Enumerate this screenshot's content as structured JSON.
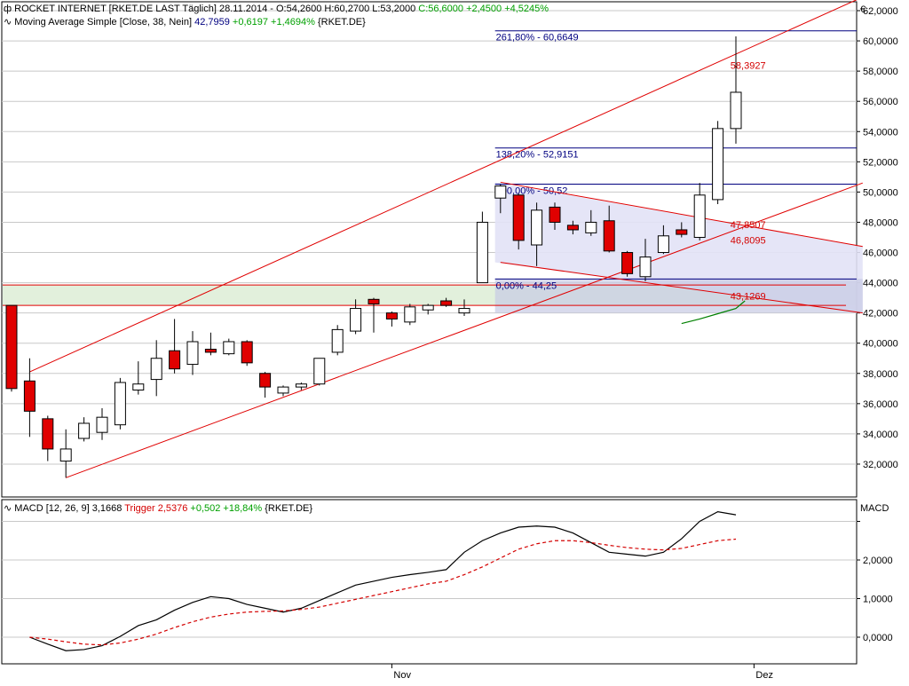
{
  "header": {
    "line1": {
      "icon": "candlestick-icon",
      "prefix": "ROCKET INTERNET [RKET.DE LAST Täglich] 28.11.2014 - ",
      "ohl": "O:54,2600 H:60,2700 L:53,2000",
      "close": "C:56,6000",
      "change": "+2,4500 +4,5245%"
    },
    "line2": {
      "icon": "line-icon",
      "label": "Moving Average Simple [Close, 38, Nein]",
      "value": "42,7959",
      "change": "+0,6197 +1,4694%",
      "symbol": "{RKET.DE}"
    },
    "macd_line": {
      "icon": "line-icon",
      "label": "MACD [12, 26, 9] 3,1668",
      "trigger": "Trigger 2,5376",
      "change": "+0,502 +18,84%",
      "symbol": "{RKET.DE}"
    }
  },
  "colors": {
    "up": "#ffffff",
    "down": "#e00000",
    "channel": "#e00000",
    "fib": "#000080",
    "ma": "#008000",
    "macd": "#000000",
    "trigger": "#d40000",
    "zone_green": "#e2f0dc",
    "zone_blue": "#e2e2f6",
    "grid": "#c8c8c8"
  },
  "chart_data": [
    {
      "type": "candlestick",
      "currency_label": "€",
      "ylim": [
        30500,
        63500
      ],
      "y_ticks": [
        32000,
        34000,
        36000,
        38000,
        40000,
        42000,
        44000,
        46000,
        48000,
        50000,
        52000,
        54000,
        56000,
        58000,
        60000,
        62000
      ],
      "tick_labels": [
        "32,0000",
        "34,0000",
        "36,0000",
        "38,0000",
        "40,0000",
        "42,0000",
        "44,0000",
        "46,0000",
        "48,0000",
        "50,0000",
        "52,0000",
        "54,0000",
        "56,0000",
        "58,0000",
        "60,0000",
        "62,0000"
      ],
      "x_labels": [
        {
          "index": 21,
          "label": "Nov"
        },
        {
          "index": 41,
          "label": "Dez"
        }
      ],
      "candles": [
        {
          "o": 42500,
          "h": 42500,
          "l": 36800,
          "c": 37000
        },
        {
          "o": 37500,
          "h": 39000,
          "l": 33800,
          "c": 35500
        },
        {
          "o": 35000,
          "h": 35200,
          "l": 32200,
          "c": 33000
        },
        {
          "o": 32200,
          "h": 34300,
          "l": 31100,
          "c": 33000
        },
        {
          "o": 33700,
          "h": 35100,
          "l": 33500,
          "c": 34700
        },
        {
          "o": 34100,
          "h": 35700,
          "l": 33600,
          "c": 35100
        },
        {
          "o": 34600,
          "h": 37700,
          "l": 34300,
          "c": 37400
        },
        {
          "o": 36900,
          "h": 38800,
          "l": 36600,
          "c": 37300
        },
        {
          "o": 37600,
          "h": 40200,
          "l": 36500,
          "c": 39000
        },
        {
          "o": 39500,
          "h": 41600,
          "l": 38000,
          "c": 38300
        },
        {
          "o": 38600,
          "h": 40800,
          "l": 37900,
          "c": 40100
        },
        {
          "o": 39600,
          "h": 40700,
          "l": 39200,
          "c": 39400
        },
        {
          "o": 39300,
          "h": 40300,
          "l": 39200,
          "c": 40100
        },
        {
          "o": 40100,
          "h": 40200,
          "l": 38500,
          "c": 38700
        },
        {
          "o": 38000,
          "h": 38100,
          "l": 36400,
          "c": 37100
        },
        {
          "o": 36700,
          "h": 37200,
          "l": 36500,
          "c": 37100
        },
        {
          "o": 37100,
          "h": 37400,
          "l": 36900,
          "c": 37300
        },
        {
          "o": 37300,
          "h": 39000,
          "l": 37200,
          "c": 39000
        },
        {
          "o": 39400,
          "h": 41200,
          "l": 39200,
          "c": 40900
        },
        {
          "o": 40800,
          "h": 42900,
          "l": 40600,
          "c": 42300
        },
        {
          "o": 42900,
          "h": 43000,
          "l": 40700,
          "c": 42600
        },
        {
          "o": 42000,
          "h": 42100,
          "l": 41100,
          "c": 41600
        },
        {
          "o": 41400,
          "h": 42600,
          "l": 41200,
          "c": 42400
        },
        {
          "o": 42200,
          "h": 42600,
          "l": 41900,
          "c": 42500
        },
        {
          "o": 42800,
          "h": 43000,
          "l": 42400,
          "c": 42500
        },
        {
          "o": 42000,
          "h": 42900,
          "l": 41800,
          "c": 42300
        },
        {
          "o": 44000,
          "h": 48700,
          "l": 44000,
          "c": 48000
        },
        {
          "o": 49600,
          "h": 50500,
          "l": 48600,
          "c": 50400
        },
        {
          "o": 49800,
          "h": 49900,
          "l": 46200,
          "c": 46800
        },
        {
          "o": 46500,
          "h": 49300,
          "l": 45100,
          "c": 48800
        },
        {
          "o": 49000,
          "h": 49300,
          "l": 47500,
          "c": 48000
        },
        {
          "o": 47800,
          "h": 48100,
          "l": 47200,
          "c": 47500
        },
        {
          "o": 47300,
          "h": 48800,
          "l": 47100,
          "c": 48000
        },
        {
          "o": 48100,
          "h": 49100,
          "l": 46000,
          "c": 46100
        },
        {
          "o": 46000,
          "h": 46100,
          "l": 44400,
          "c": 44600
        },
        {
          "o": 44400,
          "h": 46900,
          "l": 44100,
          "c": 45700
        },
        {
          "o": 46000,
          "h": 47800,
          "l": 45900,
          "c": 47100
        },
        {
          "o": 47500,
          "h": 48000,
          "l": 47000,
          "c": 47200
        },
        {
          "o": 47000,
          "h": 50600,
          "l": 46800,
          "c": 49800
        },
        {
          "o": 49500,
          "h": 54700,
          "l": 49200,
          "c": 54200
        },
        {
          "o": 54200,
          "h": 60300,
          "l": 53200,
          "c": 56600
        }
      ],
      "channel": {
        "upper": [
          {
            "i": 1,
            "v": 38100
          },
          {
            "i": 47,
            "v": 62900
          }
        ],
        "lower": [
          {
            "i": 3,
            "v": 31100
          },
          {
            "i": 47,
            "v": 50600
          }
        ],
        "down_upper": [
          {
            "i": 27,
            "v": 50650
          },
          {
            "i": 47,
            "v": 46400
          }
        ],
        "down_lower": [
          {
            "i": 27,
            "v": 45350
          },
          {
            "i": 47,
            "v": 42000
          }
        ]
      },
      "ma": [
        {
          "i": 37,
          "v": 41300
        },
        {
          "i": 38,
          "v": 41600
        },
        {
          "i": 39,
          "v": 41950
        },
        {
          "i": 40,
          "v": 42300
        },
        {
          "i": 40.5,
          "v": 42800
        }
      ],
      "levels": {
        "green_zone": [
          42500,
          43850
        ],
        "red_lines": [
          43850,
          42500
        ],
        "blue_zone": {
          "from_index": 26.7,
          "to_index": 47,
          "top": 50520,
          "bottom": 44250,
          "lower_bottom": 42000
        }
      },
      "fib": [
        {
          "label": "261,80% - 60,6649",
          "value": 60665
        },
        {
          "label": "138,20% - 52,9151",
          "value": 52915
        },
        {
          "label": "100,00% - 50,52",
          "value": 50520
        },
        {
          "label": "0,00% - 44,25",
          "value": 44250
        }
      ],
      "red_labels": [
        {
          "label": "58,3927",
          "value": 58393
        },
        {
          "label": "47,8507",
          "value": 47851
        },
        {
          "label": "46,8095",
          "value": 46810
        },
        {
          "label": "43,1269",
          "value": 43127
        }
      ]
    },
    {
      "type": "line",
      "title": "MACD",
      "ylim": [
        -0.6,
        3.7
      ],
      "y_ticks": [
        0,
        1,
        2,
        3
      ],
      "tick_labels": [
        "0,0000",
        "1,0000",
        "2,0000",
        ""
      ],
      "series": [
        {
          "name": "MACD",
          "x": [
            1,
            2,
            3,
            4,
            5,
            6,
            7,
            8,
            9,
            10,
            11,
            12,
            13,
            14,
            15,
            16,
            17,
            18,
            19,
            20,
            21,
            22,
            23,
            24,
            25,
            26,
            27,
            28,
            29,
            30,
            31,
            32,
            33,
            34,
            35,
            36,
            37,
            38,
            39,
            40
          ],
          "values": [
            0.0,
            -0.18,
            -0.35,
            -0.32,
            -0.22,
            0.02,
            0.3,
            0.45,
            0.7,
            0.9,
            1.05,
            1.0,
            0.85,
            0.75,
            0.65,
            0.75,
            0.95,
            1.15,
            1.35,
            1.45,
            1.55,
            1.62,
            1.68,
            1.75,
            2.2,
            2.5,
            2.7,
            2.85,
            2.88,
            2.85,
            2.7,
            2.45,
            2.2,
            2.15,
            2.1,
            2.2,
            2.55,
            3.0,
            3.25,
            3.17
          ]
        },
        {
          "name": "Trigger",
          "x": [
            1,
            2,
            3,
            4,
            5,
            6,
            7,
            8,
            9,
            10,
            11,
            12,
            13,
            14,
            15,
            16,
            17,
            18,
            19,
            20,
            21,
            22,
            23,
            24,
            25,
            26,
            27,
            28,
            29,
            30,
            31,
            32,
            33,
            34,
            35,
            36,
            37,
            38,
            39,
            40
          ],
          "values": [
            0.0,
            -0.05,
            -0.12,
            -0.18,
            -0.2,
            -0.15,
            -0.05,
            0.08,
            0.25,
            0.4,
            0.52,
            0.6,
            0.65,
            0.67,
            0.68,
            0.72,
            0.78,
            0.88,
            0.98,
            1.08,
            1.18,
            1.28,
            1.38,
            1.45,
            1.62,
            1.82,
            2.05,
            2.28,
            2.42,
            2.5,
            2.5,
            2.45,
            2.38,
            2.32,
            2.28,
            2.26,
            2.3,
            2.4,
            2.5,
            2.54
          ]
        }
      ]
    }
  ]
}
